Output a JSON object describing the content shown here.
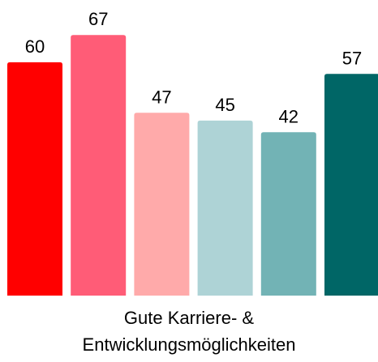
{
  "chart_data": {
    "type": "bar",
    "categories": [
      "Gute Karriere- & Entwicklungsmöglichkeiten"
    ],
    "series": [
      {
        "color": "#ff0000",
        "values": [
          60
        ]
      },
      {
        "color": "#ff5c77",
        "values": [
          67
        ]
      },
      {
        "color": "#ffaaaa",
        "values": [
          47
        ]
      },
      {
        "color": "#aed3d6",
        "values": [
          45
        ]
      },
      {
        "color": "#72b3b5",
        "values": [
          42
        ]
      },
      {
        "color": "#006666",
        "values": [
          57
        ]
      }
    ],
    "ylim": [
      0,
      76
    ]
  }
}
